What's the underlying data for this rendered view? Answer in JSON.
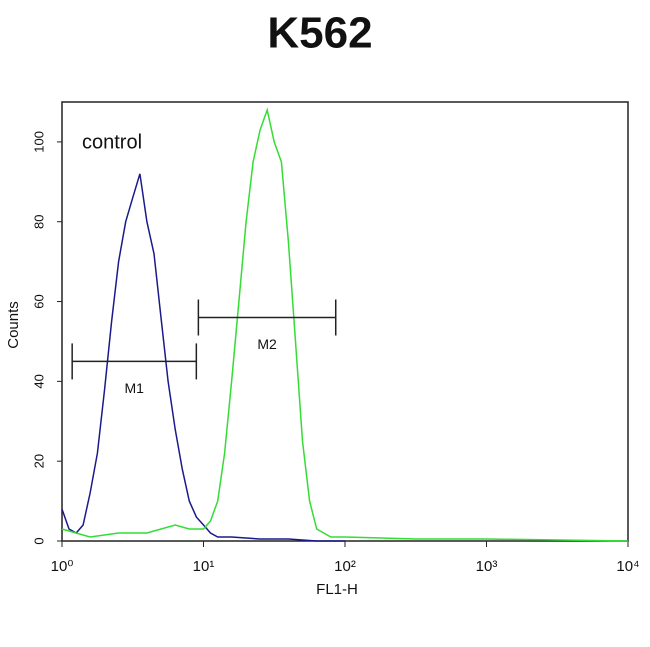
{
  "chart_data": {
    "type": "line",
    "title": "K562",
    "x_label": "FL1-H",
    "y_label": "Counts",
    "x_scale": "log",
    "xlim": [
      1,
      10000
    ],
    "xticks": [
      {
        "value": 1,
        "label": "10⁰"
      },
      {
        "value": 10,
        "label": "10¹"
      },
      {
        "value": 100,
        "label": "10²"
      },
      {
        "value": 1000,
        "label": "10³"
      },
      {
        "value": 10000,
        "label": "10⁴"
      }
    ],
    "ylim": [
      0,
      110
    ],
    "yticks": [
      0,
      20,
      40,
      60,
      80,
      100
    ],
    "series": [
      {
        "name": "control",
        "color": "#1a1a8c",
        "x": [
          1,
          1.12,
          1.26,
          1.41,
          1.58,
          1.78,
          2.0,
          2.24,
          2.51,
          2.82,
          3.16,
          3.55,
          3.98,
          4.47,
          5.01,
          5.62,
          6.31,
          7.08,
          7.94,
          8.91,
          10,
          11.2,
          12.6,
          15.8,
          25.1,
          39.8,
          63.1,
          100
        ],
        "values": [
          8,
          3,
          2,
          4,
          12,
          22,
          38,
          55,
          70,
          80,
          86,
          92,
          80,
          72,
          56,
          40,
          28,
          18,
          10,
          6,
          4,
          2,
          1,
          1,
          0.5,
          0.5,
          0,
          0
        ]
      },
      {
        "color": "#33dd33",
        "x": [
          1,
          1.58,
          2.51,
          3.98,
          6.31,
          7.94,
          10,
          11.2,
          12.6,
          14.1,
          15.8,
          17.8,
          20,
          22.4,
          25.1,
          28.2,
          31.6,
          35.5,
          39.8,
          44.7,
          50.1,
          56.2,
          63.1,
          79.4,
          100,
          316,
          1000,
          10000
        ],
        "values": [
          3,
          1,
          2,
          2,
          4,
          3,
          3,
          5,
          10,
          22,
          40,
          60,
          80,
          95,
          103,
          108,
          100,
          95,
          75,
          50,
          25,
          10,
          3,
          1,
          1,
          0.5,
          0.5,
          0
        ]
      }
    ],
    "gates": [
      {
        "label": "M1",
        "x": [
          1.18,
          8.9
        ],
        "y": 45
      },
      {
        "label": "M2",
        "x": [
          9.2,
          86
        ],
        "y": 56
      }
    ]
  }
}
